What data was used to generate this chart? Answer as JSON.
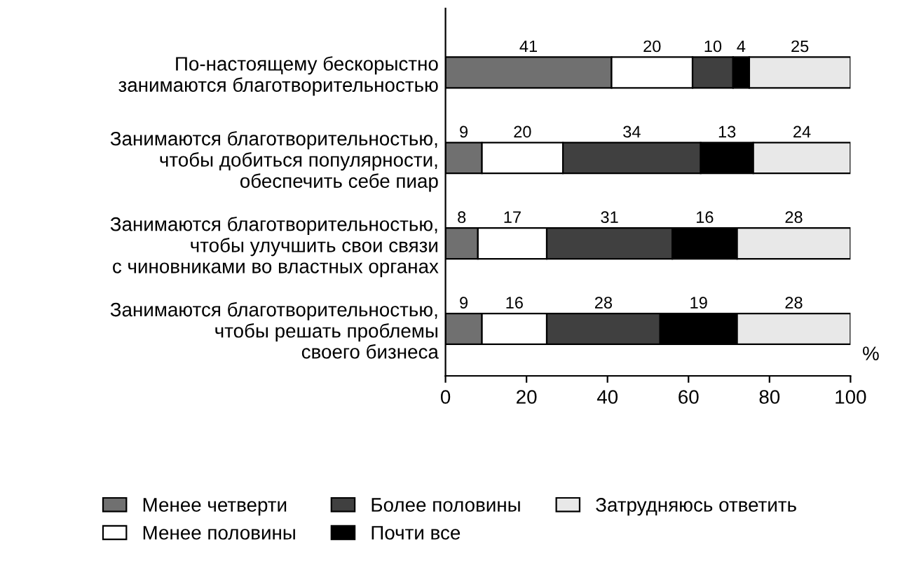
{
  "chart_data": {
    "type": "bar",
    "orientation": "horizontal",
    "stacked": true,
    "data_labels": true,
    "xlabel": "%",
    "categories": [
      "По-настоящему бескорыстно\nзанимаются благотворительностью",
      "Занимаются благотворительностью,\nчтобы добиться популярности,\nобеспечить себе пиар",
      "Занимаются благотворительностью,\nчтобы улучшить свои связи\nс чиновниками во властных органах",
      "Занимаются благотворительностью,\nчтобы решать проблемы\nсвоего бизнеса"
    ],
    "series": [
      {
        "name": "Менее четверти",
        "color": "#707070",
        "values": [
          41,
          9,
          8,
          9
        ]
      },
      {
        "name": "Менее половины",
        "color": "#ffffff",
        "values": [
          20,
          20,
          17,
          16
        ]
      },
      {
        "name": "Более половины",
        "color": "#404040",
        "values": [
          10,
          34,
          31,
          28
        ]
      },
      {
        "name": "Почти все",
        "color": "#000000",
        "values": [
          4,
          13,
          16,
          19
        ]
      },
      {
        "name": "Затрудняюсь ответить",
        "color": "#e8e8e8",
        "values": [
          25,
          24,
          28,
          28
        ]
      }
    ],
    "xlim": [
      0,
      100
    ],
    "xticks": [
      0,
      20,
      40,
      60,
      80,
      100
    ],
    "grid": false,
    "legend": "bottom"
  }
}
